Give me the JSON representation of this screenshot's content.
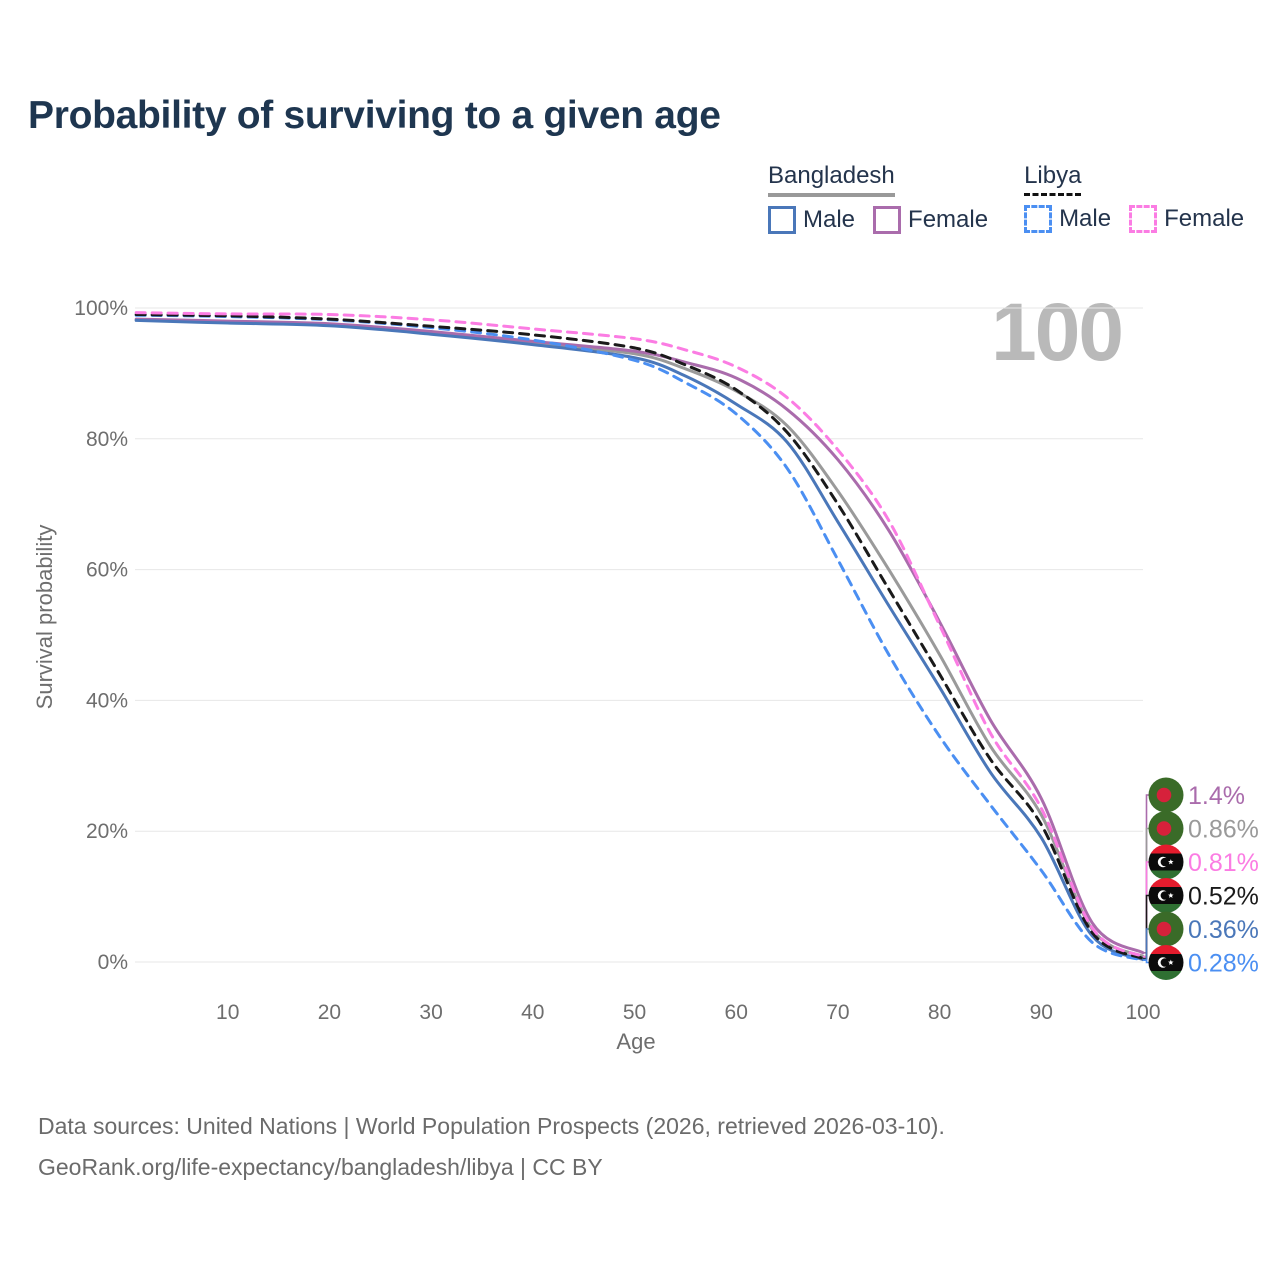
{
  "title": "Probability of surviving to a given age",
  "watermark_age": "100",
  "legend": {
    "groups": [
      {
        "label": "Bangladesh",
        "line_style": "solid",
        "underline_color": "#999999",
        "items": [
          {
            "label": "Male",
            "color": "#4a77b9"
          },
          {
            "label": "Female",
            "color": "#aa6cac"
          }
        ]
      },
      {
        "label": "Libya",
        "line_style": "dashed",
        "underline_color": "#111111",
        "items": [
          {
            "label": "Male",
            "color": "#4b8ff2"
          },
          {
            "label": "Female",
            "color": "#fb7ce3"
          }
        ]
      }
    ]
  },
  "flags": {
    "bangladesh": {
      "field": "#3a6b28",
      "disc": "#d6213b"
    },
    "libya": {
      "red": "#e41c2d",
      "black": "#0b0b0b",
      "green": "#2f7032",
      "emblem": "#ffffff"
    }
  },
  "chart_data": {
    "type": "line",
    "title": "Probability of surviving to a given age",
    "xlabel": "Age",
    "ylabel": "Survival probability",
    "xlim": [
      0,
      100
    ],
    "ylim": [
      0,
      100
    ],
    "x_ticks": [
      10,
      20,
      30,
      40,
      50,
      60,
      70,
      80,
      90,
      100
    ],
    "x_tick_labels": [
      "10",
      "20",
      "30",
      "40",
      "50",
      "60",
      "70",
      "80",
      "90",
      "100"
    ],
    "y_ticks": [
      0,
      20,
      40,
      60,
      80,
      100
    ],
    "y_tick_labels": [
      "0%",
      "20%",
      "40%",
      "60%",
      "80%",
      "100%"
    ],
    "grid": true,
    "legend_position": "top-right",
    "ages": [
      1,
      10,
      20,
      30,
      40,
      50,
      55,
      60,
      65,
      70,
      75,
      80,
      85,
      90,
      95,
      100
    ],
    "series": [
      {
        "name": "Bangladesh Both sexes",
        "country": "Bangladesh",
        "flag": "bangladesh",
        "color": "#9a9a9a",
        "dashed": false,
        "end_label": "0.86%",
        "values": [
          98.2,
          97.8,
          97.4,
          96.2,
          94.6,
          93.0,
          90.7,
          87.3,
          82.0,
          72.0,
          60.0,
          47.0,
          33.0,
          22.5,
          5.0,
          0.86
        ]
      },
      {
        "name": "Bangladesh Female",
        "country": "Bangladesh",
        "flag": "bangladesh",
        "color": "#aa6cac",
        "dashed": false,
        "end_label": "1.4%",
        "values": [
          98.3,
          98.0,
          97.6,
          96.4,
          94.9,
          93.4,
          91.7,
          89.3,
          84.5,
          76.8,
          66.0,
          52.0,
          37.0,
          25.0,
          6.0,
          1.4
        ]
      },
      {
        "name": "Bangladesh Male",
        "country": "Bangladesh",
        "flag": "bangladesh",
        "color": "#4a77b9",
        "dashed": false,
        "end_label": "0.36%",
        "values": [
          98.1,
          97.7,
          97.3,
          96.0,
          94.4,
          92.4,
          89.6,
          85.3,
          79.5,
          67.3,
          54.5,
          42.0,
          29.0,
          19.0,
          4.0,
          0.36
        ]
      },
      {
        "name": "Libya Male",
        "country": "Libya",
        "flag": "libya",
        "color": "#4b8ff2",
        "dashed": true,
        "end_label": "0.28%",
        "values": [
          98.9,
          98.7,
          98.2,
          97.0,
          95.1,
          92.0,
          88.6,
          83.8,
          75.5,
          61.5,
          47.0,
          34.5,
          24.0,
          14.0,
          3.0,
          0.28
        ]
      },
      {
        "name": "Libya Both sexes",
        "country": "Libya",
        "flag": "libya",
        "color": "#1a1a1a",
        "dashed": true,
        "end_label": "0.52%",
        "values": [
          99.0,
          98.8,
          98.3,
          97.2,
          95.9,
          93.9,
          91.3,
          87.5,
          81.0,
          70.0,
          57.0,
          44.0,
          31.0,
          21.0,
          4.5,
          0.52
        ]
      },
      {
        "name": "Libya Female",
        "country": "Libya",
        "flag": "libya",
        "color": "#fb7ce3",
        "dashed": true,
        "end_label": "0.81%",
        "values": [
          99.3,
          99.1,
          99.0,
          98.2,
          96.8,
          95.3,
          93.6,
          91.0,
          86.3,
          78.3,
          67.5,
          51.5,
          35.0,
          23.5,
          5.2,
          0.81
        ]
      }
    ]
  },
  "source": {
    "line1": "Data sources: United Nations | World Population Prospects (2026, retrieved 2026-03-10).",
    "line2": "GeoRank.org/life-expectancy/bangladesh/libya | CC BY"
  }
}
